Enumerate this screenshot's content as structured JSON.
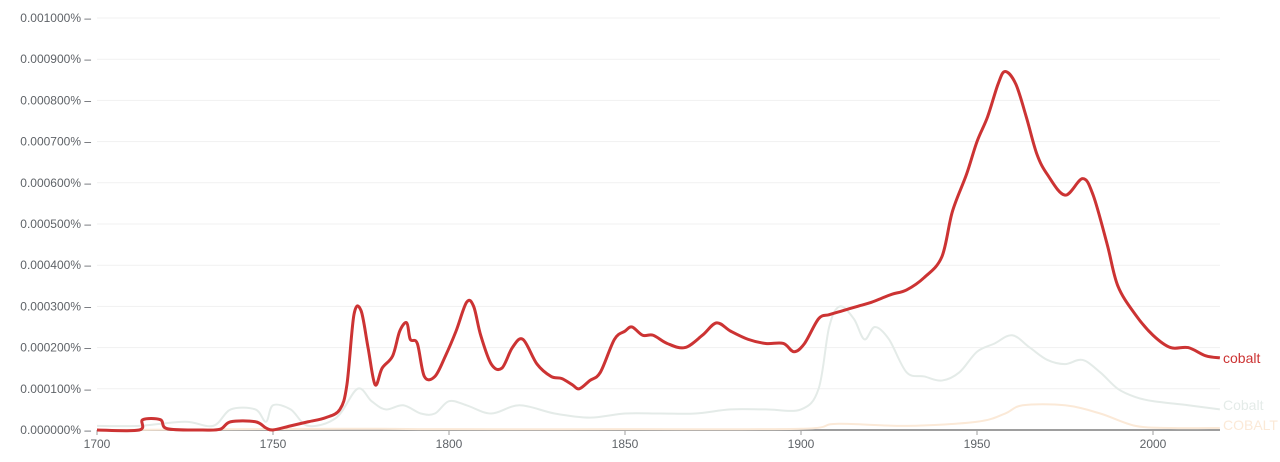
{
  "chart_data": {
    "type": "line",
    "title": "",
    "xlabel": "",
    "ylabel": "",
    "xlim": [
      1700,
      2019
    ],
    "ylim": [
      0,
      0.001
    ],
    "grid": true,
    "legend": "right-end-labels",
    "x_ticks": [
      "1700",
      "1750",
      "1800",
      "1850",
      "1900",
      "1950",
      "2000"
    ],
    "x_tick_values": [
      1700,
      1750,
      1800,
      1850,
      1900,
      1950,
      2000
    ],
    "y_ticks": [
      "0.000000%",
      "0.000100%",
      "0.000200%",
      "0.000300%",
      "0.000400%",
      "0.000500%",
      "0.000600%",
      "0.000700%",
      "0.000800%",
      "0.000900%",
      "0.001000%"
    ],
    "y_tick_values": [
      0,
      0.0001,
      0.0002,
      0.0003,
      0.0004,
      0.0005,
      0.0006,
      0.0007,
      0.0008,
      0.0009,
      0.001
    ],
    "series": [
      {
        "name": "COBALT",
        "color": "#fbe9d7",
        "points": [
          [
            1700,
            0
          ],
          [
            1770,
            3e-06
          ],
          [
            1800,
            2e-06
          ],
          [
            1850,
            2e-06
          ],
          [
            1900,
            3e-06
          ],
          [
            1910,
            1.5e-05
          ],
          [
            1930,
            1e-05
          ],
          [
            1950,
            2e-05
          ],
          [
            1958,
            4e-05
          ],
          [
            1963,
            6e-05
          ],
          [
            1975,
            6e-05
          ],
          [
            1985,
            4e-05
          ],
          [
            1995,
            1e-05
          ],
          [
            2005,
            5e-06
          ],
          [
            2019,
            5e-06
          ]
        ]
      },
      {
        "name": "Cobalt",
        "color": "#e4ebe8",
        "points": [
          [
            1700,
            1e-05
          ],
          [
            1712,
            1e-05
          ],
          [
            1725,
            2e-05
          ],
          [
            1733,
            1e-05
          ],
          [
            1738,
            5e-05
          ],
          [
            1745,
            5e-05
          ],
          [
            1748,
            2e-05
          ],
          [
            1750,
            6e-05
          ],
          [
            1755,
            5e-05
          ],
          [
            1760,
            1e-05
          ],
          [
            1768,
            3e-05
          ],
          [
            1774,
            0.0001
          ],
          [
            1778,
            7e-05
          ],
          [
            1782,
            5e-05
          ],
          [
            1787,
            6e-05
          ],
          [
            1792,
            4e-05
          ],
          [
            1796,
            4e-05
          ],
          [
            1800,
            7e-05
          ],
          [
            1805,
            6e-05
          ],
          [
            1812,
            4e-05
          ],
          [
            1820,
            6e-05
          ],
          [
            1830,
            4e-05
          ],
          [
            1840,
            3e-05
          ],
          [
            1850,
            4e-05
          ],
          [
            1860,
            4e-05
          ],
          [
            1870,
            4e-05
          ],
          [
            1880,
            5e-05
          ],
          [
            1890,
            5e-05
          ],
          [
            1900,
            5e-05
          ],
          [
            1905,
            0.0001
          ],
          [
            1908,
            0.00025
          ],
          [
            1911,
            0.0003
          ],
          [
            1915,
            0.00027
          ],
          [
            1918,
            0.00022
          ],
          [
            1921,
            0.00025
          ],
          [
            1925,
            0.00022
          ],
          [
            1930,
            0.00014
          ],
          [
            1935,
            0.00013
          ],
          [
            1940,
            0.00012
          ],
          [
            1945,
            0.00014
          ],
          [
            1950,
            0.00019
          ],
          [
            1955,
            0.00021
          ],
          [
            1960,
            0.00023
          ],
          [
            1965,
            0.0002
          ],
          [
            1970,
            0.00017
          ],
          [
            1975,
            0.00016
          ],
          [
            1980,
            0.00017
          ],
          [
            1985,
            0.00014
          ],
          [
            1990,
            0.0001
          ],
          [
            1995,
            8e-05
          ],
          [
            2000,
            7e-05
          ],
          [
            2010,
            6e-05
          ],
          [
            2019,
            5e-05
          ]
        ]
      },
      {
        "name": "cobalt",
        "color": "#cc3333",
        "points": [
          [
            1700,
            0
          ],
          [
            1712,
            0
          ],
          [
            1713,
            2.5e-05
          ],
          [
            1718,
            2.5e-05
          ],
          [
            1720,
            3e-06
          ],
          [
            1730,
            0
          ],
          [
            1735,
            2e-06
          ],
          [
            1738,
            2e-05
          ],
          [
            1745,
            2e-05
          ],
          [
            1748,
            5e-06
          ],
          [
            1750,
            0
          ],
          [
            1755,
            1e-05
          ],
          [
            1760,
            2e-05
          ],
          [
            1765,
            3e-05
          ],
          [
            1769,
            5e-05
          ],
          [
            1771,
            0.00011
          ],
          [
            1773,
            0.00028
          ],
          [
            1775,
            0.00029
          ],
          [
            1777,
            0.0002
          ],
          [
            1779,
            0.00011
          ],
          [
            1781,
            0.00015
          ],
          [
            1784,
            0.00018
          ],
          [
            1786,
            0.00024
          ],
          [
            1788,
            0.00026
          ],
          [
            1789,
            0.00022
          ],
          [
            1791,
            0.00021
          ],
          [
            1793,
            0.00013
          ],
          [
            1796,
            0.00013
          ],
          [
            1799,
            0.00018
          ],
          [
            1802,
            0.00024
          ],
          [
            1805,
            0.00031
          ],
          [
            1807,
            0.0003
          ],
          [
            1809,
            0.00023
          ],
          [
            1812,
            0.00016
          ],
          [
            1815,
            0.00015
          ],
          [
            1818,
            0.0002
          ],
          [
            1821,
            0.00022
          ],
          [
            1825,
            0.00016
          ],
          [
            1829,
            0.00013
          ],
          [
            1832,
            0.000125
          ],
          [
            1835,
            0.00011
          ],
          [
            1837,
            0.0001
          ],
          [
            1840,
            0.00012
          ],
          [
            1843,
            0.00014
          ],
          [
            1847,
            0.00022
          ],
          [
            1850,
            0.00024
          ],
          [
            1852,
            0.00025
          ],
          [
            1855,
            0.00023
          ],
          [
            1858,
            0.00023
          ],
          [
            1862,
            0.00021
          ],
          [
            1867,
            0.0002
          ],
          [
            1872,
            0.00023
          ],
          [
            1876,
            0.00026
          ],
          [
            1880,
            0.00024
          ],
          [
            1885,
            0.00022
          ],
          [
            1890,
            0.00021
          ],
          [
            1895,
            0.00021
          ],
          [
            1898,
            0.00019
          ],
          [
            1901,
            0.00021
          ],
          [
            1905,
            0.00027
          ],
          [
            1908,
            0.00028
          ],
          [
            1912,
            0.00029
          ],
          [
            1916,
            0.0003
          ],
          [
            1920,
            0.00031
          ],
          [
            1923,
            0.00032
          ],
          [
            1926,
            0.00033
          ],
          [
            1930,
            0.00034
          ],
          [
            1935,
            0.00037
          ],
          [
            1940,
            0.00042
          ],
          [
            1943,
            0.00053
          ],
          [
            1947,
            0.00062
          ],
          [
            1950,
            0.0007
          ],
          [
            1953,
            0.00076
          ],
          [
            1956,
            0.00084
          ],
          [
            1958,
            0.00087
          ],
          [
            1961,
            0.00084
          ],
          [
            1964,
            0.00076
          ],
          [
            1967,
            0.00067
          ],
          [
            1970,
            0.00062
          ],
          [
            1975,
            0.00057
          ],
          [
            1980,
            0.00061
          ],
          [
            1983,
            0.00057
          ],
          [
            1987,
            0.00045
          ],
          [
            1990,
            0.00035
          ],
          [
            1995,
            0.00028
          ],
          [
            2000,
            0.00023
          ],
          [
            2005,
            0.0002
          ],
          [
            2010,
            0.0002
          ],
          [
            2015,
            0.00018
          ],
          [
            2019,
            0.000175
          ]
        ]
      }
    ]
  }
}
